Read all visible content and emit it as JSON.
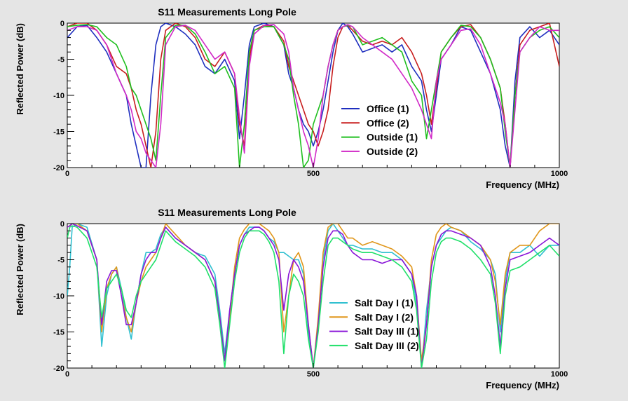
{
  "chart_data": [
    {
      "type": "line",
      "title": "S11 Measurements Long Pole",
      "xlabel": "Frequency (MHz)",
      "ylabel": "Reflected Power (dB)",
      "xlim": [
        0,
        1000
      ],
      "ylim": [
        -20,
        0
      ],
      "x_ticks": [
        "0",
        "500",
        "1000"
      ],
      "y_ticks": [
        "0",
        "-5",
        "-10",
        "-15",
        "-20"
      ],
      "legend_position": "center-right",
      "x": [
        0,
        20,
        40,
        60,
        80,
        100,
        120,
        130,
        140,
        150,
        160,
        170,
        180,
        190,
        200,
        220,
        240,
        260,
        280,
        300,
        320,
        340,
        350,
        360,
        370,
        380,
        400,
        420,
        440,
        450,
        460,
        470,
        480,
        490,
        500,
        510,
        520,
        530,
        540,
        550,
        560,
        570,
        580,
        600,
        620,
        640,
        660,
        680,
        700,
        720,
        730,
        740,
        750,
        760,
        780,
        800,
        820,
        840,
        860,
        880,
        890,
        900,
        910,
        920,
        940,
        960,
        980,
        1000
      ],
      "series": [
        {
          "name": "Office (1)",
          "color": "#1f2fbf",
          "values": [
            -2,
            -0.5,
            -0.3,
            -2,
            -4,
            -7,
            -10,
            -14,
            -17,
            -20,
            -20,
            -10,
            -3,
            -0.5,
            0,
            -0.5,
            -1.5,
            -3,
            -6,
            -7,
            -5,
            -8,
            -16,
            -10,
            -3,
            -0.5,
            0,
            -0.5,
            -3,
            -7,
            -9,
            -12,
            -14,
            -15,
            -17,
            -15,
            -12,
            -8,
            -4,
            -1,
            0,
            -0.5,
            -1.5,
            -4,
            -3.5,
            -3,
            -4,
            -3,
            -6,
            -8,
            -12,
            -15,
            -10,
            -5,
            -3,
            -0.5,
            -1,
            -4,
            -7,
            -12,
            -17,
            -20,
            -8,
            -2,
            -0.5,
            -2,
            -1,
            -3
          ]
        },
        {
          "name": "Office (2)",
          "color": "#c81e1e",
          "values": [
            -0.5,
            0,
            0,
            -1,
            -3,
            -6,
            -7,
            -9,
            -12,
            -14,
            -17,
            -20,
            -15,
            -5,
            -1,
            0,
            -0.5,
            -2,
            -5,
            -6,
            -4,
            -7,
            -14,
            -17,
            -5,
            -1,
            -0.3,
            -0.5,
            -2.5,
            -6,
            -8,
            -10,
            -12,
            -14,
            -15,
            -17,
            -15,
            -12,
            -6,
            -2,
            -0.5,
            -0.3,
            -1,
            -2.5,
            -3,
            -2.5,
            -3,
            -2,
            -4,
            -7,
            -10,
            -14,
            -9,
            -4,
            -2,
            -0.5,
            -0.2,
            -2,
            -5,
            -9,
            -14,
            -20,
            -10,
            -3,
            -1,
            -0.5,
            0,
            -6
          ]
        },
        {
          "name": "Outside (1)",
          "color": "#1fbf1f",
          "values": [
            -0.5,
            -0.3,
            -0.2,
            -0.5,
            -2,
            -3,
            -6,
            -9,
            -10,
            -12,
            -14,
            -16,
            -19,
            -10,
            -2,
            -0.3,
            -0.3,
            -1.5,
            -4,
            -7,
            -6,
            -9,
            -20,
            -14,
            -4,
            -1,
            -0.5,
            -0.5,
            -3,
            -5,
            -10,
            -14,
            -20,
            -19,
            -14,
            -12,
            -10,
            -6,
            -3,
            -1,
            -0.5,
            -0.3,
            -0.5,
            -3,
            -2.5,
            -2,
            -3,
            -4,
            -8,
            -10,
            -16,
            -12,
            -8,
            -4,
            -2,
            -0.3,
            -0.5,
            -2,
            -5,
            -9,
            -15,
            -20,
            -10,
            -4,
            -2,
            -1,
            -0.5,
            -2
          ]
        },
        {
          "name": "Outside (2)",
          "color": "#d129c7",
          "values": [
            -1,
            -0.5,
            -0.5,
            -1,
            -3,
            -7,
            -10,
            -12,
            -15,
            -16,
            -18,
            -19,
            -20,
            -14,
            -3,
            -0.5,
            -0.3,
            -1,
            -3,
            -5,
            -4,
            -7,
            -13,
            -18,
            -6,
            -1.5,
            -0.3,
            -0.2,
            -1.5,
            -4,
            -9,
            -12,
            -15,
            -17,
            -20,
            -16,
            -10,
            -6,
            -3,
            -1,
            -0.5,
            -0.2,
            -0.5,
            -2,
            -3,
            -4,
            -5,
            -7,
            -9,
            -12,
            -14,
            -16,
            -8,
            -5,
            -3,
            -1,
            -0.8,
            -3,
            -7,
            -11,
            -14,
            -20,
            -12,
            -4,
            -2,
            -0.5,
            -1,
            -1
          ]
        }
      ]
    },
    {
      "type": "line",
      "title": "S11 Measurements Long Pole",
      "xlabel": "Frequency (MHz)",
      "ylabel": "Reflected Power (dB)",
      "xlim": [
        0,
        1000
      ],
      "ylim": [
        -20,
        0
      ],
      "x_ticks": [
        "0",
        "500",
        "1000"
      ],
      "y_ticks": [
        "0",
        "-5",
        "-10",
        "-15",
        "-20"
      ],
      "legend_position": "center-right",
      "x": [
        0,
        5,
        10,
        20,
        40,
        60,
        70,
        80,
        90,
        100,
        110,
        120,
        130,
        140,
        150,
        160,
        170,
        180,
        190,
        200,
        220,
        240,
        260,
        280,
        300,
        310,
        320,
        330,
        340,
        350,
        360,
        370,
        380,
        390,
        400,
        410,
        420,
        430,
        440,
        450,
        460,
        470,
        480,
        490,
        500,
        510,
        520,
        530,
        540,
        550,
        560,
        570,
        580,
        600,
        620,
        640,
        660,
        680,
        700,
        710,
        720,
        730,
        740,
        750,
        760,
        770,
        780,
        800,
        820,
        840,
        860,
        870,
        880,
        890,
        900,
        920,
        940,
        960,
        980,
        1000
      ],
      "series": [
        {
          "name": "Salt Day I (1)",
          "color": "#30c0d0",
          "values": [
            -10,
            -6,
            -0.5,
            0,
            -0.5,
            -5,
            -17,
            -10,
            -7,
            -6,
            -9,
            -13,
            -16,
            -11,
            -7,
            -4,
            -4,
            -3.5,
            -1.5,
            -0.5,
            -2,
            -3,
            -4,
            -4.5,
            -7,
            -12,
            -18,
            -12,
            -7,
            -3,
            -1.5,
            -0.5,
            -0.5,
            -0.5,
            -1,
            -2,
            -2.5,
            -4,
            -4,
            -4.5,
            -5,
            -5,
            -7,
            -15,
            -20,
            -14,
            -5,
            -1,
            0,
            -1,
            -2,
            -3,
            -3,
            -3.5,
            -3.5,
            -4,
            -4,
            -5,
            -7,
            -11,
            -20,
            -12,
            -6,
            -3,
            -2,
            -1,
            -0.5,
            -1,
            -2.5,
            -3.5,
            -5,
            -7,
            -15,
            -8,
            -4,
            -4,
            -3,
            -4.5,
            -3,
            -3
          ]
        },
        {
          "name": "Salt Day I (2)",
          "color": "#e0961a",
          "values": [
            -0.5,
            -0.3,
            0,
            0,
            -1,
            -5,
            -15,
            -9,
            -7,
            -6,
            -10,
            -13,
            -15,
            -11,
            -8,
            -6,
            -5,
            -4,
            -2,
            0,
            -1.5,
            -3,
            -4,
            -5,
            -8,
            -13,
            -19,
            -13,
            -6,
            -2,
            -0.8,
            0,
            0,
            0,
            -0.5,
            -1,
            -2,
            -4,
            -15,
            -10,
            -5,
            -4,
            -6,
            -14,
            -20,
            -13,
            -4,
            -0.5,
            0,
            0,
            -1,
            -2,
            -2,
            -3,
            -2.5,
            -3,
            -3.5,
            -4.5,
            -6,
            -10,
            -19,
            -14,
            -5,
            -1.5,
            -0.5,
            0,
            -0.5,
            -1,
            -2,
            -3,
            -5,
            -8,
            -14,
            -7,
            -4,
            -3,
            -3,
            -1,
            0,
            0
          ]
        },
        {
          "name": "Salt Day III (1)",
          "color": "#8a16d8",
          "values": [
            -0.5,
            -0.3,
            0,
            -0.3,
            -1,
            -5,
            -14,
            -8,
            -6.5,
            -6.5,
            -10,
            -14,
            -14,
            -11,
            -7,
            -5,
            -4,
            -4,
            -2,
            -0.5,
            -2,
            -3,
            -4,
            -5,
            -8,
            -13,
            -19,
            -12,
            -7,
            -3,
            -1.5,
            -1,
            -0.5,
            -0.5,
            -1,
            -2,
            -3,
            -5,
            -12,
            -7,
            -5,
            -6,
            -8,
            -14,
            -20,
            -14,
            -6,
            -2,
            -1,
            -1,
            -1.5,
            -3,
            -4,
            -5,
            -5,
            -5.5,
            -5,
            -5,
            -7,
            -10,
            -20,
            -14,
            -6,
            -3,
            -1.5,
            -1,
            -1,
            -1.5,
            -2,
            -3,
            -6,
            -10,
            -17,
            -9,
            -5,
            -4.5,
            -4,
            -3,
            -2,
            -3
          ]
        },
        {
          "name": "Salt Day III (2)",
          "color": "#20e06a",
          "values": [
            -2,
            -0.5,
            -0.3,
            -0.5,
            -2,
            -6,
            -13,
            -9,
            -8,
            -7,
            -9,
            -12,
            -13,
            -10,
            -8,
            -7,
            -6,
            -5,
            -3,
            -1,
            -2.5,
            -3.5,
            -4.5,
            -6,
            -9,
            -14,
            -20,
            -14,
            -8,
            -4,
            -2,
            -1,
            -1,
            -1,
            -1.5,
            -2.5,
            -4,
            -8,
            -18,
            -10,
            -7,
            -8,
            -10,
            -16,
            -20,
            -15,
            -8,
            -3,
            -2,
            -2,
            -2.5,
            -3,
            -3.5,
            -4,
            -4,
            -4.5,
            -5,
            -6,
            -8,
            -12,
            -20,
            -16,
            -8,
            -4,
            -2.5,
            -2,
            -2,
            -2.5,
            -3.5,
            -5,
            -7,
            -11,
            -18,
            -10,
            -6.5,
            -6,
            -5,
            -4,
            -3,
            -4.5
          ]
        }
      ]
    }
  ]
}
